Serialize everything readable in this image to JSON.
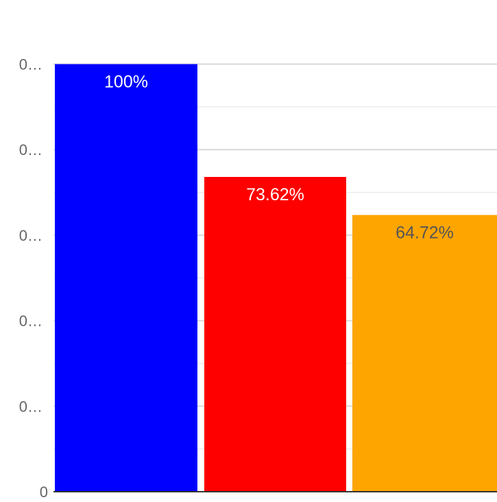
{
  "chart_data": {
    "type": "bar",
    "categories": [
      "",
      "",
      ""
    ],
    "values": [
      100,
      73.62,
      64.72
    ],
    "data_labels": [
      "100%",
      "73.62%",
      "64.72%"
    ],
    "y_tick_labels": [
      "0",
      "0…",
      "0…",
      "0…",
      "0…",
      "0…"
    ],
    "y_tick_values": [
      0,
      20,
      40,
      60,
      80,
      100
    ],
    "ylim": [
      0,
      115
    ],
    "grid": true,
    "colors": {
      "bars": [
        "#0000ff",
        "#ff0000",
        "#ffa500"
      ],
      "labels": [
        "#ffffff",
        "#ffffff",
        "#555555"
      ],
      "gridline": "#d9d9d9",
      "baseline": "#333333"
    }
  }
}
